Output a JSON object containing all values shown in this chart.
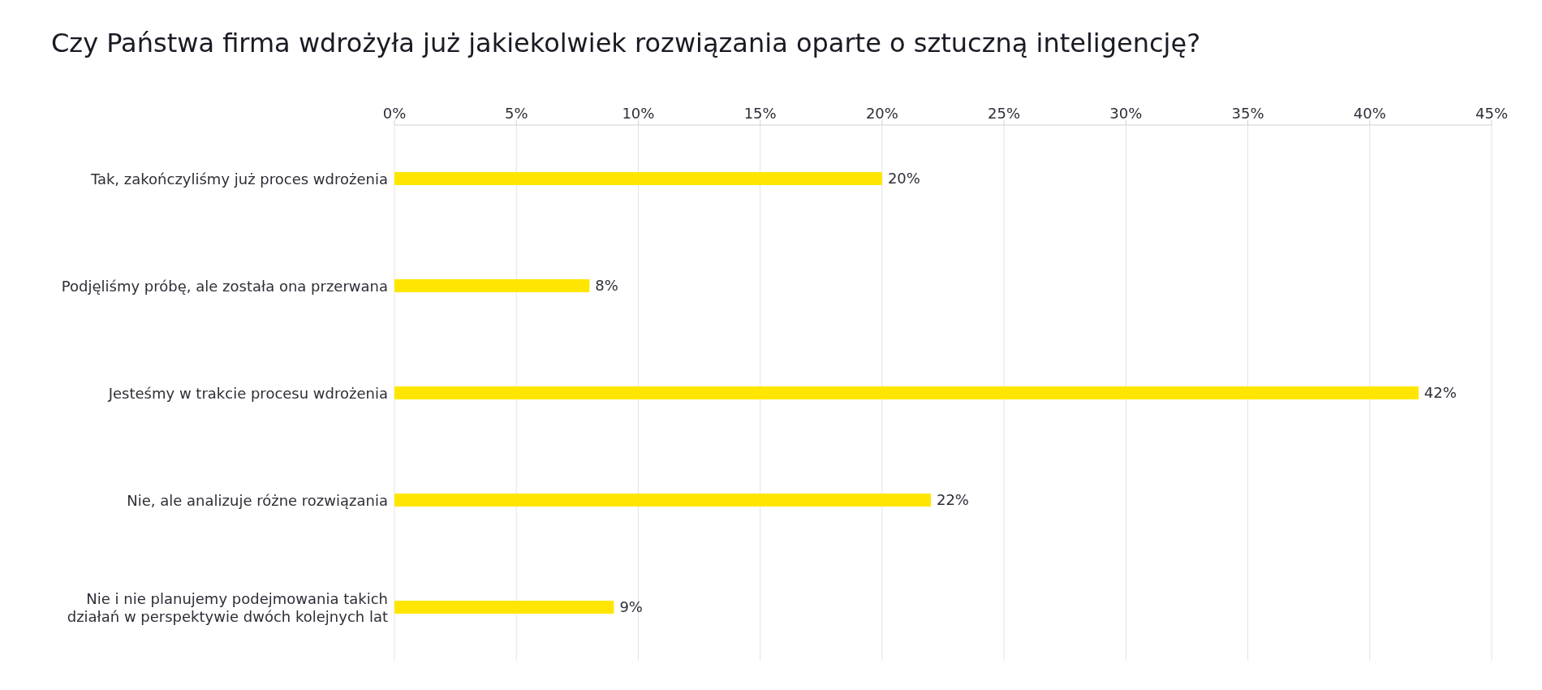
{
  "chart_data": {
    "type": "bar",
    "orientation": "horizontal",
    "title": "Czy Państwa firma wdrożyła już jakiekolwiek rozwiązania oparte o sztuczną inteligencję?",
    "categories": [
      "Tak, zakończyliśmy już proces wdrożenia",
      "Podjęliśmy próbę, ale została ona przerwana",
      "Jesteśmy w trakcie procesu wdrożenia",
      "Nie, ale analizuje różne rozwiązania",
      "Nie i nie planujemy podejmowania takich działań w perspektywie dwóch kolejnych lat"
    ],
    "values": [
      20,
      8,
      42,
      22,
      9
    ],
    "value_labels": [
      "20%",
      "8%",
      "42%",
      "22%",
      "9%"
    ],
    "color": "#ffe600",
    "xlim": [
      0,
      45
    ],
    "xticks": [
      {
        "value": 0,
        "label": "0%"
      },
      {
        "value": 5,
        "label": "5%"
      },
      {
        "value": 10,
        "label": "10%"
      },
      {
        "value": 15,
        "label": "15%"
      },
      {
        "value": 20,
        "label": "20%"
      },
      {
        "value": 25,
        "label": "25%"
      },
      {
        "value": 30,
        "label": "30%"
      },
      {
        "value": 35,
        "label": "35%"
      },
      {
        "value": 40,
        "label": "40%"
      },
      {
        "value": 45,
        "label": "45%"
      }
    ],
    "grid": "x"
  }
}
